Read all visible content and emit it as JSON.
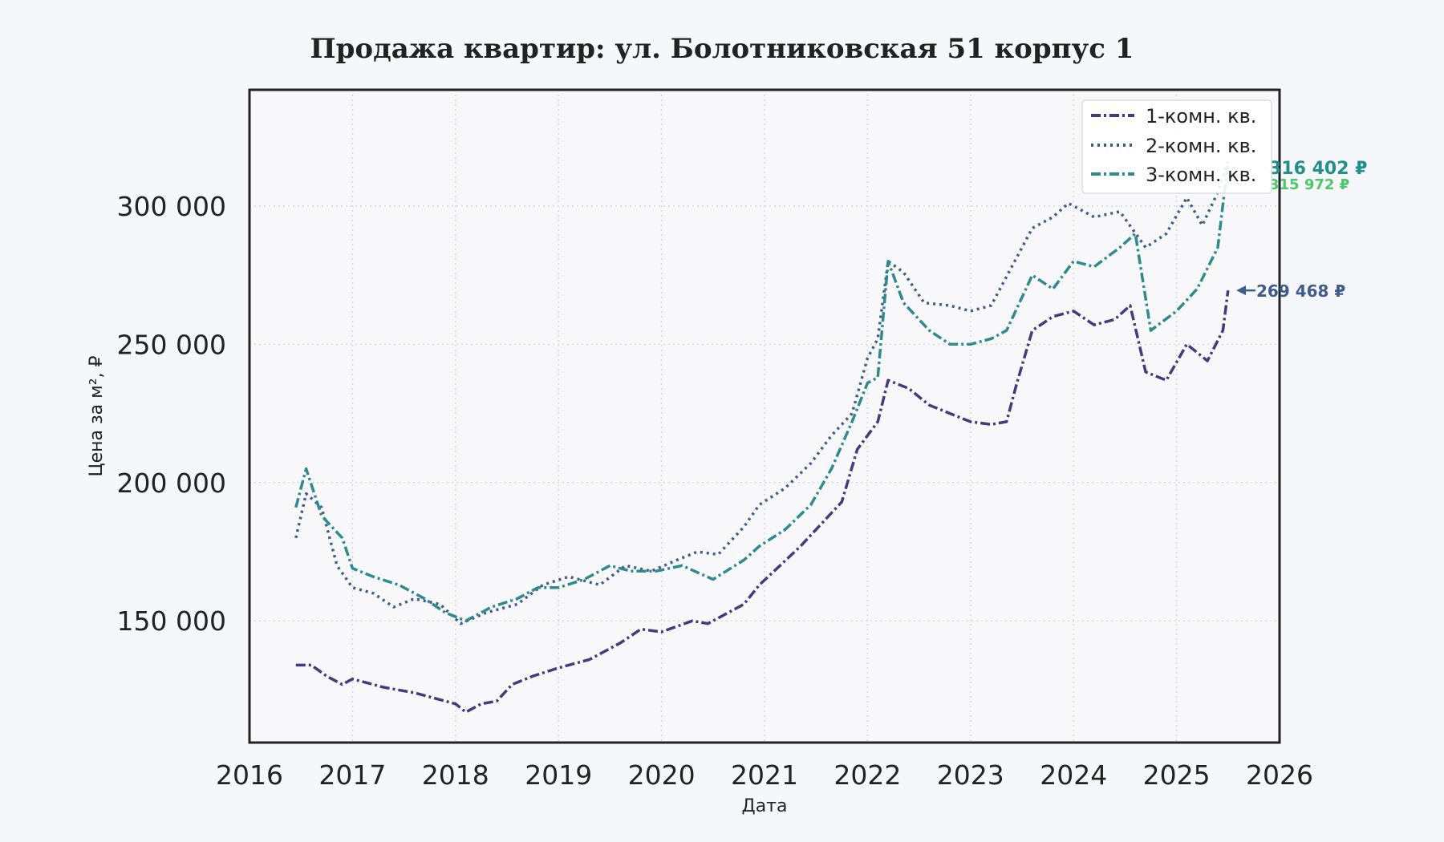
{
  "chart_data": {
    "type": "line",
    "title": "Продажа квартир: ул. Болотниковская 51 корпус 1",
    "xlabel": "Дата",
    "ylabel": "Цена за м², ₽",
    "xlim": [
      2016,
      2026
    ],
    "ylim": [
      106000,
      342000
    ],
    "x_ticks": [
      2016,
      2017,
      2018,
      2019,
      2020,
      2021,
      2022,
      2023,
      2024,
      2025,
      2026
    ],
    "x_tick_labels": [
      "2016",
      "2017",
      "2018",
      "2019",
      "2020",
      "2021",
      "2022",
      "2023",
      "2024",
      "2025",
      "2026"
    ],
    "y_ticks": [
      150000,
      200000,
      250000,
      300000
    ],
    "y_tick_labels": [
      "150 000",
      "200 000",
      "250 000",
      "300 000"
    ],
    "grid": true,
    "legend_position": "top-right",
    "series": [
      {
        "name": "1-комн. кв.",
        "color": "#463a7e",
        "linestyle": "dash-dot",
        "x": [
          2016.45,
          2016.6,
          2016.75,
          2016.9,
          2017.0,
          2017.3,
          2017.6,
          2017.8,
          2018.0,
          2018.1,
          2018.25,
          2018.4,
          2018.55,
          2018.75,
          2019.0,
          2019.3,
          2019.6,
          2019.8,
          2020.0,
          2020.3,
          2020.45,
          2020.6,
          2020.8,
          2020.95,
          2021.15,
          2021.35,
          2021.55,
          2021.75,
          2021.9,
          2022.1,
          2022.2,
          2022.4,
          2022.6,
          2022.8,
          2023.0,
          2023.2,
          2023.35,
          2023.45,
          2023.6,
          2023.8,
          2024.0,
          2024.2,
          2024.4,
          2024.55,
          2024.7,
          2024.9,
          2025.1,
          2025.3,
          2025.45,
          2025.5
        ],
        "values": [
          134000,
          134000,
          130000,
          127000,
          129000,
          126000,
          124000,
          122000,
          120000,
          117000,
          120000,
          121000,
          127000,
          130000,
          133000,
          136000,
          142000,
          147000,
          146000,
          150000,
          149000,
          152000,
          156000,
          163000,
          170000,
          177000,
          185000,
          193000,
          212000,
          222000,
          237000,
          234000,
          228000,
          225000,
          222000,
          221000,
          222000,
          236000,
          255000,
          260000,
          262000,
          257000,
          259000,
          264000,
          240000,
          237000,
          250000,
          244000,
          255000,
          269468
        ]
      },
      {
        "name": "2-комн. кв.",
        "color": "#3e5c8e",
        "linestyle": "dotted",
        "x": [
          2016.45,
          2016.55,
          2016.7,
          2016.85,
          2017.0,
          2017.2,
          2017.4,
          2017.6,
          2017.85,
          2018.05,
          2018.3,
          2018.6,
          2018.85,
          2019.1,
          2019.4,
          2019.65,
          2019.9,
          2020.15,
          2020.35,
          2020.55,
          2020.8,
          2020.95,
          2021.2,
          2021.45,
          2021.65,
          2021.85,
          2022.0,
          2022.1,
          2022.2,
          2022.35,
          2022.55,
          2022.8,
          2023.0,
          2023.2,
          2023.4,
          2023.6,
          2023.8,
          2023.95,
          2024.2,
          2024.45,
          2024.7,
          2024.9,
          2025.1,
          2025.25,
          2025.4,
          2025.5
        ],
        "values": [
          180000,
          196000,
          191000,
          170000,
          162000,
          160000,
          155000,
          158000,
          156000,
          149000,
          153000,
          156000,
          163000,
          166000,
          163000,
          170000,
          168000,
          172000,
          175000,
          174000,
          184000,
          192000,
          198000,
          207000,
          217000,
          225000,
          245000,
          252000,
          280000,
          276000,
          265000,
          264000,
          262000,
          264000,
          278000,
          292000,
          296000,
          301000,
          296000,
          298000,
          285000,
          290000,
          303000,
          293000,
          305000,
          316402
        ]
      },
      {
        "name": "3-комн. кв.",
        "color": "#2f8a8e",
        "linestyle": "dash-dot",
        "x": [
          2016.45,
          2016.55,
          2016.7,
          2016.9,
          2017.0,
          2017.2,
          2017.45,
          2017.7,
          2017.9,
          2018.1,
          2018.35,
          2018.6,
          2018.8,
          2019.0,
          2019.25,
          2019.5,
          2019.7,
          2019.95,
          2020.2,
          2020.5,
          2020.8,
          2020.95,
          2021.2,
          2021.45,
          2021.65,
          2021.85,
          2022.0,
          2022.1,
          2022.2,
          2022.35,
          2022.6,
          2022.8,
          2023.0,
          2023.2,
          2023.35,
          2023.45,
          2023.6,
          2023.8,
          2024.0,
          2024.2,
          2024.45,
          2024.6,
          2024.75,
          2025.0,
          2025.2,
          2025.4,
          2025.5
        ],
        "values": [
          191000,
          205000,
          188000,
          180000,
          169000,
          166000,
          163000,
          158000,
          153000,
          150000,
          155000,
          158000,
          162000,
          162000,
          165000,
          170000,
          168000,
          168000,
          170000,
          165000,
          172000,
          177000,
          183000,
          192000,
          205000,
          222000,
          236000,
          238000,
          280000,
          265000,
          255000,
          250000,
          250000,
          252000,
          255000,
          263000,
          275000,
          270000,
          280000,
          278000,
          285000,
          290000,
          255000,
          262000,
          270000,
          285000,
          315972
        ]
      }
    ],
    "annotations": [
      {
        "text": "316 402 ₽",
        "color": "#22908a",
        "series": "2-комн. кв."
      },
      {
        "text": "315 972 ₽",
        "color": "#4cc86a",
        "series": "3-комн. кв."
      },
      {
        "text": "269 468 ₽",
        "color": "#3e5c8e",
        "series": "1-комн. кв."
      }
    ]
  }
}
